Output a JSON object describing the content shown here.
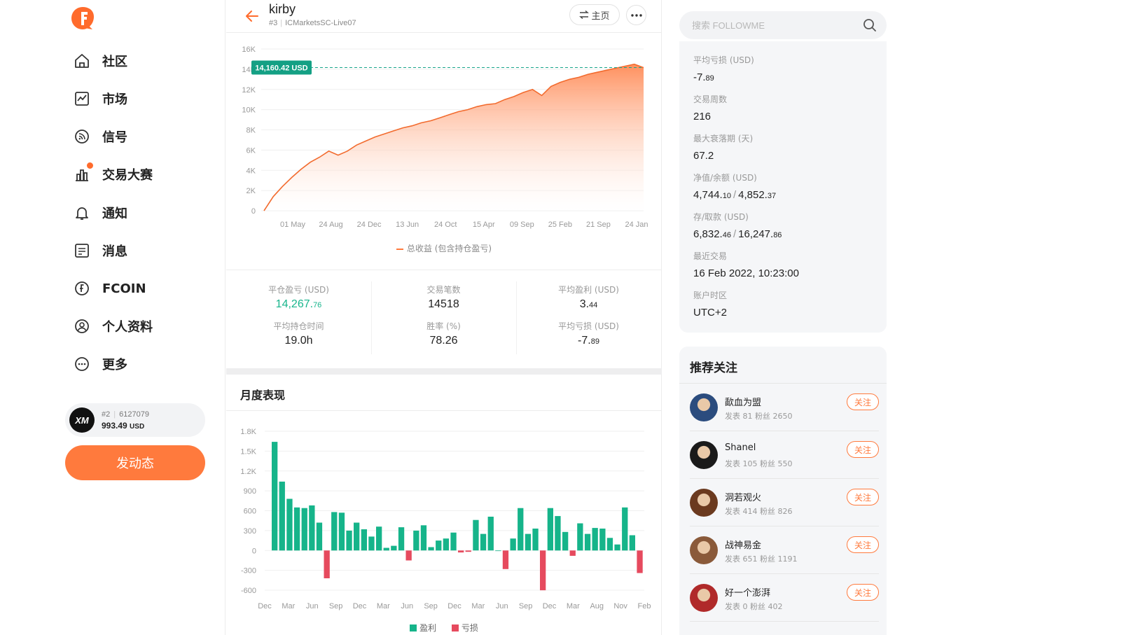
{
  "sidebar": {
    "nav": [
      {
        "label": "社区",
        "icon": "home-icon"
      },
      {
        "label": "市场",
        "icon": "chart-icon"
      },
      {
        "label": "信号",
        "icon": "signal-icon"
      },
      {
        "label": "交易大赛",
        "icon": "contest-icon"
      },
      {
        "label": "通知",
        "icon": "bell-icon"
      },
      {
        "label": "消息",
        "icon": "message-icon"
      },
      {
        "label": "FCOIN",
        "icon": "fcoin-icon"
      },
      {
        "label": "个人资料",
        "icon": "profile-icon"
      },
      {
        "label": "更多",
        "icon": "more-icon"
      }
    ],
    "account": {
      "logo_text": "XM",
      "rank": "#2",
      "id": "6127079",
      "balance_main": "993.49",
      "balance_unit": "USD"
    },
    "post_button": "发动态"
  },
  "header": {
    "name": "kirby",
    "rank": "#3",
    "server": "ICMarketsSC-Live07",
    "home_button": "主页"
  },
  "equity_chart": {
    "tag": "14,160.42 USD",
    "legend": "总收益 (包含持仓盈亏)"
  },
  "stats": [
    {
      "label": "平仓盈亏 (USD)",
      "main": "14,267.",
      "small": "76",
      "green": true
    },
    {
      "label": "交易笔数",
      "main": "14518",
      "small": ""
    },
    {
      "label": "平均盈利 (USD)",
      "main": "3.",
      "small": "44"
    },
    {
      "label": "平均持仓时间",
      "main": "19.0h",
      "small": ""
    },
    {
      "label": "胜率 (%)",
      "main": "78.26",
      "small": ""
    },
    {
      "label": "平均亏损 (USD)",
      "main": "-7.",
      "small": "89"
    }
  ],
  "monthly": {
    "title": "月度表现",
    "legend_profit": "盈利",
    "legend_loss": "亏损"
  },
  "right": {
    "search_placeholder": "搜索 FOLLOWME",
    "info": [
      {
        "label": "平均亏损 (USD)",
        "parts": [
          [
            "-7.",
            "89"
          ]
        ]
      },
      {
        "label": "交易周数",
        "parts": [
          [
            "216",
            ""
          ]
        ]
      },
      {
        "label": "最大衰落期 (天)",
        "parts": [
          [
            "67.2",
            ""
          ]
        ]
      },
      {
        "label": "净值/余额 (USD)",
        "parts": [
          [
            "4,744.",
            "10"
          ],
          [
            "4,852.",
            "37"
          ]
        ]
      },
      {
        "label": "存/取款 (USD)",
        "parts": [
          [
            "6,832.",
            "46"
          ],
          [
            "16,247.",
            "86"
          ]
        ]
      },
      {
        "label": "最近交易",
        "parts": [
          [
            "16 Feb 2022, 10:23:00",
            ""
          ]
        ]
      },
      {
        "label": "账户时区",
        "parts": [
          [
            "UTC+2",
            ""
          ]
        ]
      }
    ],
    "recommend_title": "推荐关注",
    "follow_label": "关注",
    "recommend": [
      {
        "name": "歃血为盟",
        "meta": "发表 81   粉丝 2650",
        "avatar_color": "#2b4c7e"
      },
      {
        "name": "Shanel",
        "meta": "发表 105   粉丝 550",
        "avatar_color": "#1a1a1a"
      },
      {
        "name": "洞若观火",
        "meta": "发表 414   粉丝 826",
        "avatar_color": "#6b3a1f"
      },
      {
        "name": "战神易金",
        "meta": "发表 651   粉丝 1191",
        "avatar_color": "#8a5a3a"
      },
      {
        "name": "好一个澎湃",
        "meta": "发表 0   粉丝 402",
        "avatar_color": "#b02a2a"
      }
    ]
  },
  "chart_data": [
    {
      "type": "area",
      "title": "",
      "legend": [
        "总收益 (包含持仓盈亏)"
      ],
      "ylim": [
        0,
        16000
      ],
      "yticks": [
        "0",
        "2K",
        "4K",
        "6K",
        "8K",
        "10K",
        "12K",
        "14K",
        "16K"
      ],
      "xticks": [
        "01 May",
        "24 Aug",
        "24 Dec",
        "13 Jun",
        "24 Oct",
        "15 Apr",
        "09 Sep",
        "25 Feb",
        "21 Sep",
        "24 Jan"
      ],
      "current_value": 14160.42,
      "values": [
        0,
        1400,
        2400,
        3300,
        4100,
        4800,
        5300,
        5900,
        5500,
        5900,
        6500,
        6900,
        7300,
        7600,
        7900,
        8200,
        8400,
        8700,
        8900,
        9200,
        9500,
        9800,
        10000,
        10300,
        10500,
        10600,
        11000,
        11300,
        11700,
        12000,
        11400,
        12300,
        12700,
        13000,
        13200,
        13500,
        13700,
        13900,
        14100,
        14300,
        14500,
        14160
      ]
    },
    {
      "type": "bar",
      "title": "月度表现",
      "series_names": [
        "盈利",
        "亏损"
      ],
      "ylim": [
        -600,
        1800
      ],
      "yticks": [
        "-600",
        "-300",
        "0",
        "300",
        "600",
        "900",
        "1.2K",
        "1.5K",
        "1.8K"
      ],
      "xticks": [
        "Dec",
        "Mar",
        "Jun",
        "Sep",
        "Dec",
        "Mar",
        "Jun",
        "Sep",
        "Dec",
        "Mar",
        "Jun",
        "Sep",
        "Dec",
        "Mar",
        "Aug",
        "Nov",
        "Feb"
      ],
      "values": [
        1640,
        1040,
        780,
        650,
        640,
        680,
        420,
        -420,
        580,
        570,
        300,
        420,
        320,
        210,
        360,
        40,
        70,
        350,
        -150,
        300,
        380,
        50,
        150,
        180,
        270,
        -30,
        -20,
        460,
        250,
        510,
        0,
        -280,
        180,
        640,
        250,
        330,
        -600,
        640,
        520,
        280,
        -80,
        410,
        250,
        340,
        330,
        190,
        90,
        650,
        230,
        -340
      ]
    }
  ]
}
